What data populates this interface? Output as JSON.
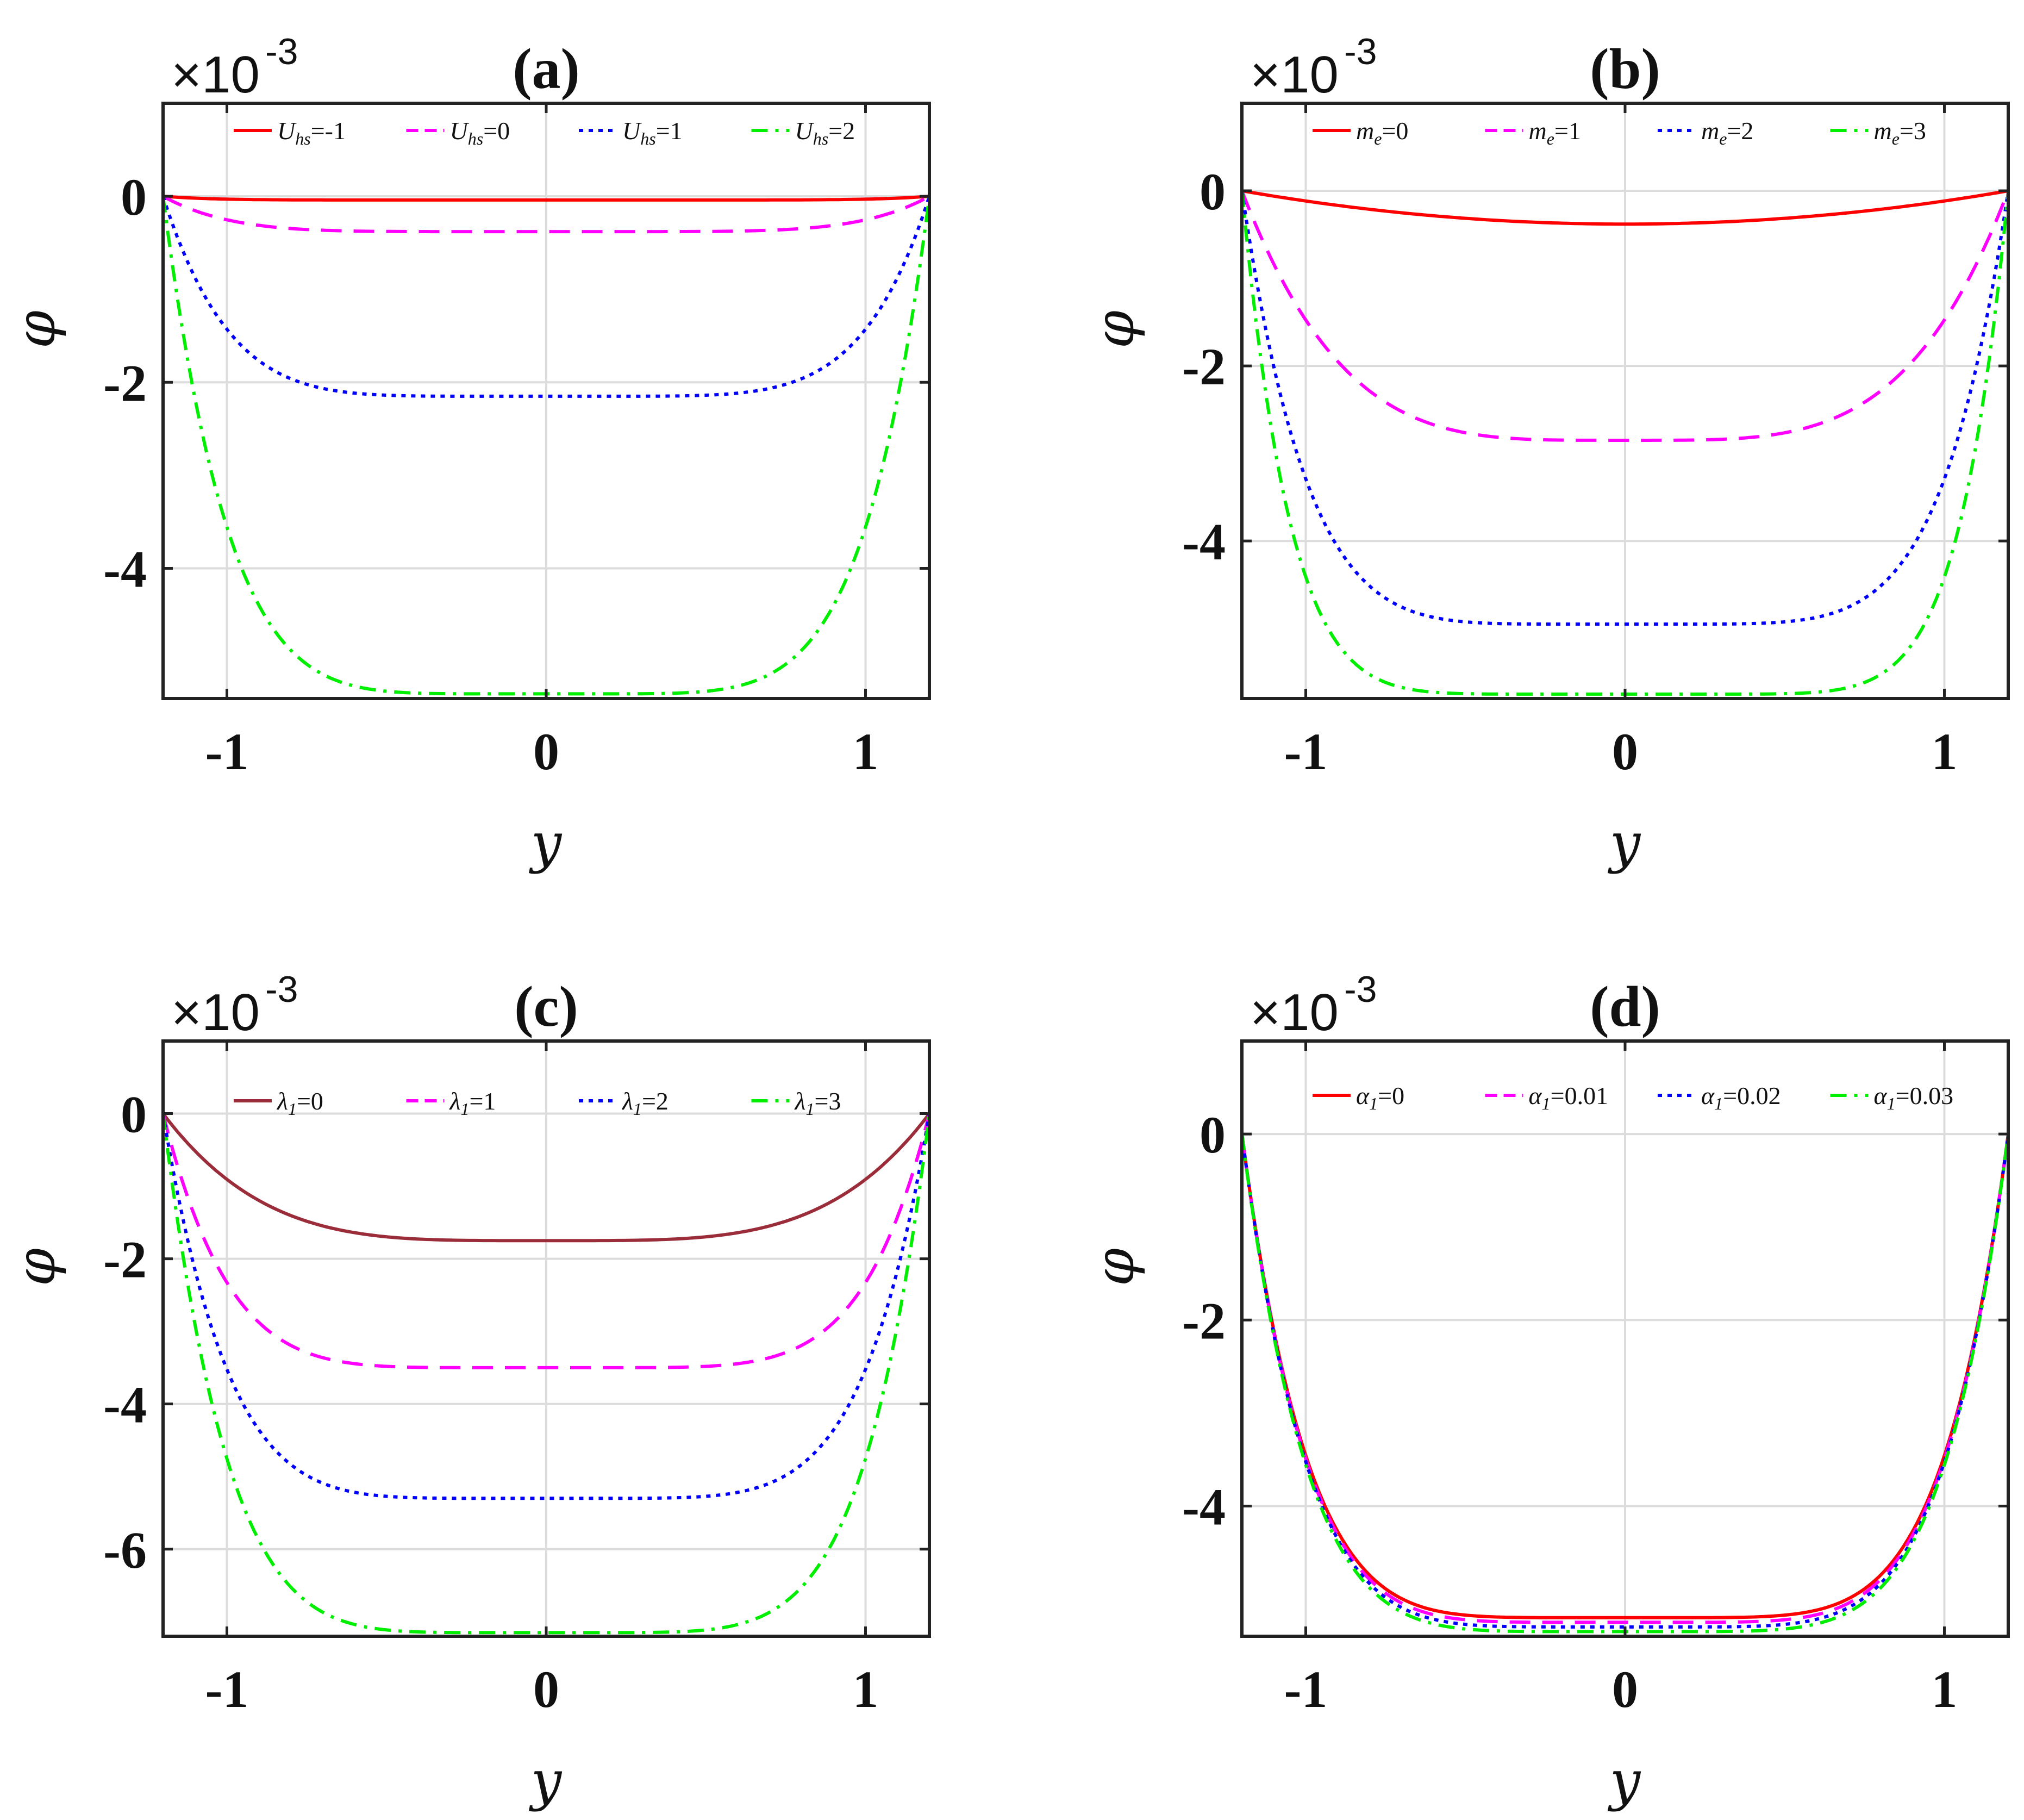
{
  "chart_data": [
    {
      "type": "line",
      "title": "(a)",
      "xlabel": "y",
      "ylabel": "φ",
      "exponent_base": "×10",
      "exponent_power": "-3",
      "xlim": [
        -1.2,
        1.2
      ],
      "ylim": [
        -5.4,
        1.0
      ],
      "xticks": [
        -1,
        0,
        1
      ],
      "yticks": [
        0,
        -2,
        -4
      ],
      "xtick_labels": [
        "-1",
        "0",
        "1"
      ],
      "ytick_labels": [
        "0",
        "-2",
        "-4"
      ],
      "legend_position": "top",
      "legend_symbol": "U",
      "legend_subscript": "hs",
      "series": [
        {
          "name": "U_hs=-1",
          "label_value": "=-1",
          "color": "#ff0000",
          "dash": "solid",
          "min": -0.04,
          "shape": 8
        },
        {
          "name": "U_hs=0",
          "label_value": "=0",
          "color": "#ff00ff",
          "dash": "dashed",
          "min": -0.38,
          "shape": 6
        },
        {
          "name": "U_hs=1",
          "label_value": "=1",
          "color": "#0000ff",
          "dash": "dotted",
          "min": -2.15,
          "shape": 6
        },
        {
          "name": "U_hs=2",
          "label_value": "=2",
          "color": "#00ee00",
          "dash": "dashdot",
          "min": -5.35,
          "shape": 6
        }
      ]
    },
    {
      "type": "line",
      "title": "(b)",
      "xlabel": "y",
      "ylabel": "φ",
      "exponent_base": "×10",
      "exponent_power": "-3",
      "xlim": [
        -1.2,
        1.2
      ],
      "ylim": [
        -5.8,
        1.0
      ],
      "xticks": [
        -1,
        0,
        1
      ],
      "yticks": [
        0,
        -2,
        -4
      ],
      "xtick_labels": [
        "-1",
        "0",
        "1"
      ],
      "ytick_labels": [
        "0",
        "-2",
        "-4"
      ],
      "legend_position": "top",
      "legend_symbol": "m",
      "legend_subscript": "e",
      "series": [
        {
          "name": "m_e=0",
          "label_value": "=0",
          "color": "#ff0000",
          "dash": "solid",
          "min": -0.38,
          "shape": 2
        },
        {
          "name": "m_e=1",
          "label_value": "=1",
          "color": "#ff00ff",
          "dash": "dashed",
          "min": -2.85,
          "shape": 4
        },
        {
          "name": "m_e=2",
          "label_value": "=2",
          "color": "#0000ff",
          "dash": "dotted",
          "min": -4.95,
          "shape": 6
        },
        {
          "name": "m_e=3",
          "label_value": "=3",
          "color": "#00ee00",
          "dash": "dashdot",
          "min": -5.75,
          "shape": 8
        }
      ]
    },
    {
      "type": "line",
      "title": "(c)",
      "xlabel": "y",
      "ylabel": "φ",
      "exponent_base": "×10",
      "exponent_power": "-3",
      "xlim": [
        -1.2,
        1.2
      ],
      "ylim": [
        -7.2,
        1.0
      ],
      "xticks": [
        -1,
        0,
        1
      ],
      "yticks": [
        0,
        -2,
        -4,
        -6
      ],
      "xtick_labels": [
        "-1",
        "0",
        "1"
      ],
      "ytick_labels": [
        "0",
        "-2",
        "-4",
        "-6"
      ],
      "legend_position": "top",
      "legend_symbol": "λ",
      "legend_subscript": "1",
      "series": [
        {
          "name": "λ1=0",
          "label_value": "=0",
          "color": "#9b2d3a",
          "dash": "solid",
          "min": -1.75,
          "shape": 4
        },
        {
          "name": "λ1=1",
          "label_value": "=1",
          "color": "#ff00ff",
          "dash": "dashed",
          "min": -3.5,
          "shape": 6
        },
        {
          "name": "λ1=2",
          "label_value": "=2",
          "color": "#0000ff",
          "dash": "dotted",
          "min": -5.3,
          "shape": 6
        },
        {
          "name": "λ1=3",
          "label_value": "=3",
          "color": "#00ee00",
          "dash": "dashdot",
          "min": -7.15,
          "shape": 6
        }
      ]
    },
    {
      "type": "line",
      "title": "(d)",
      "xlabel": "y",
      "ylabel": "φ",
      "exponent_base": "×10",
      "exponent_power": "-3",
      "xlim": [
        -1.2,
        1.2
      ],
      "ylim": [
        -5.4,
        1.0
      ],
      "xticks": [
        -1,
        0,
        1
      ],
      "yticks": [
        0,
        -2,
        -4
      ],
      "xtick_labels": [
        "-1",
        "0",
        "1"
      ],
      "ytick_labels": [
        "0",
        "-2",
        "-4"
      ],
      "legend_position": "top",
      "legend_symbol": "α",
      "legend_subscript": "1",
      "series": [
        {
          "name": "α1=0",
          "label_value": "=0",
          "color": "#ff0000",
          "dash": "solid",
          "min": -5.2,
          "shape": 6
        },
        {
          "name": "α1=0.01",
          "label_value": "=0.01",
          "color": "#ff00ff",
          "dash": "dashed",
          "min": -5.25,
          "shape": 6
        },
        {
          "name": "α1=0.02",
          "label_value": "=0.02",
          "color": "#0000ff",
          "dash": "dotted",
          "min": -5.3,
          "shape": 6
        },
        {
          "name": "α1=0.03",
          "label_value": "=0.03",
          "color": "#00ee00",
          "dash": "dashdot",
          "min": -5.35,
          "shape": 6
        }
      ]
    }
  ]
}
